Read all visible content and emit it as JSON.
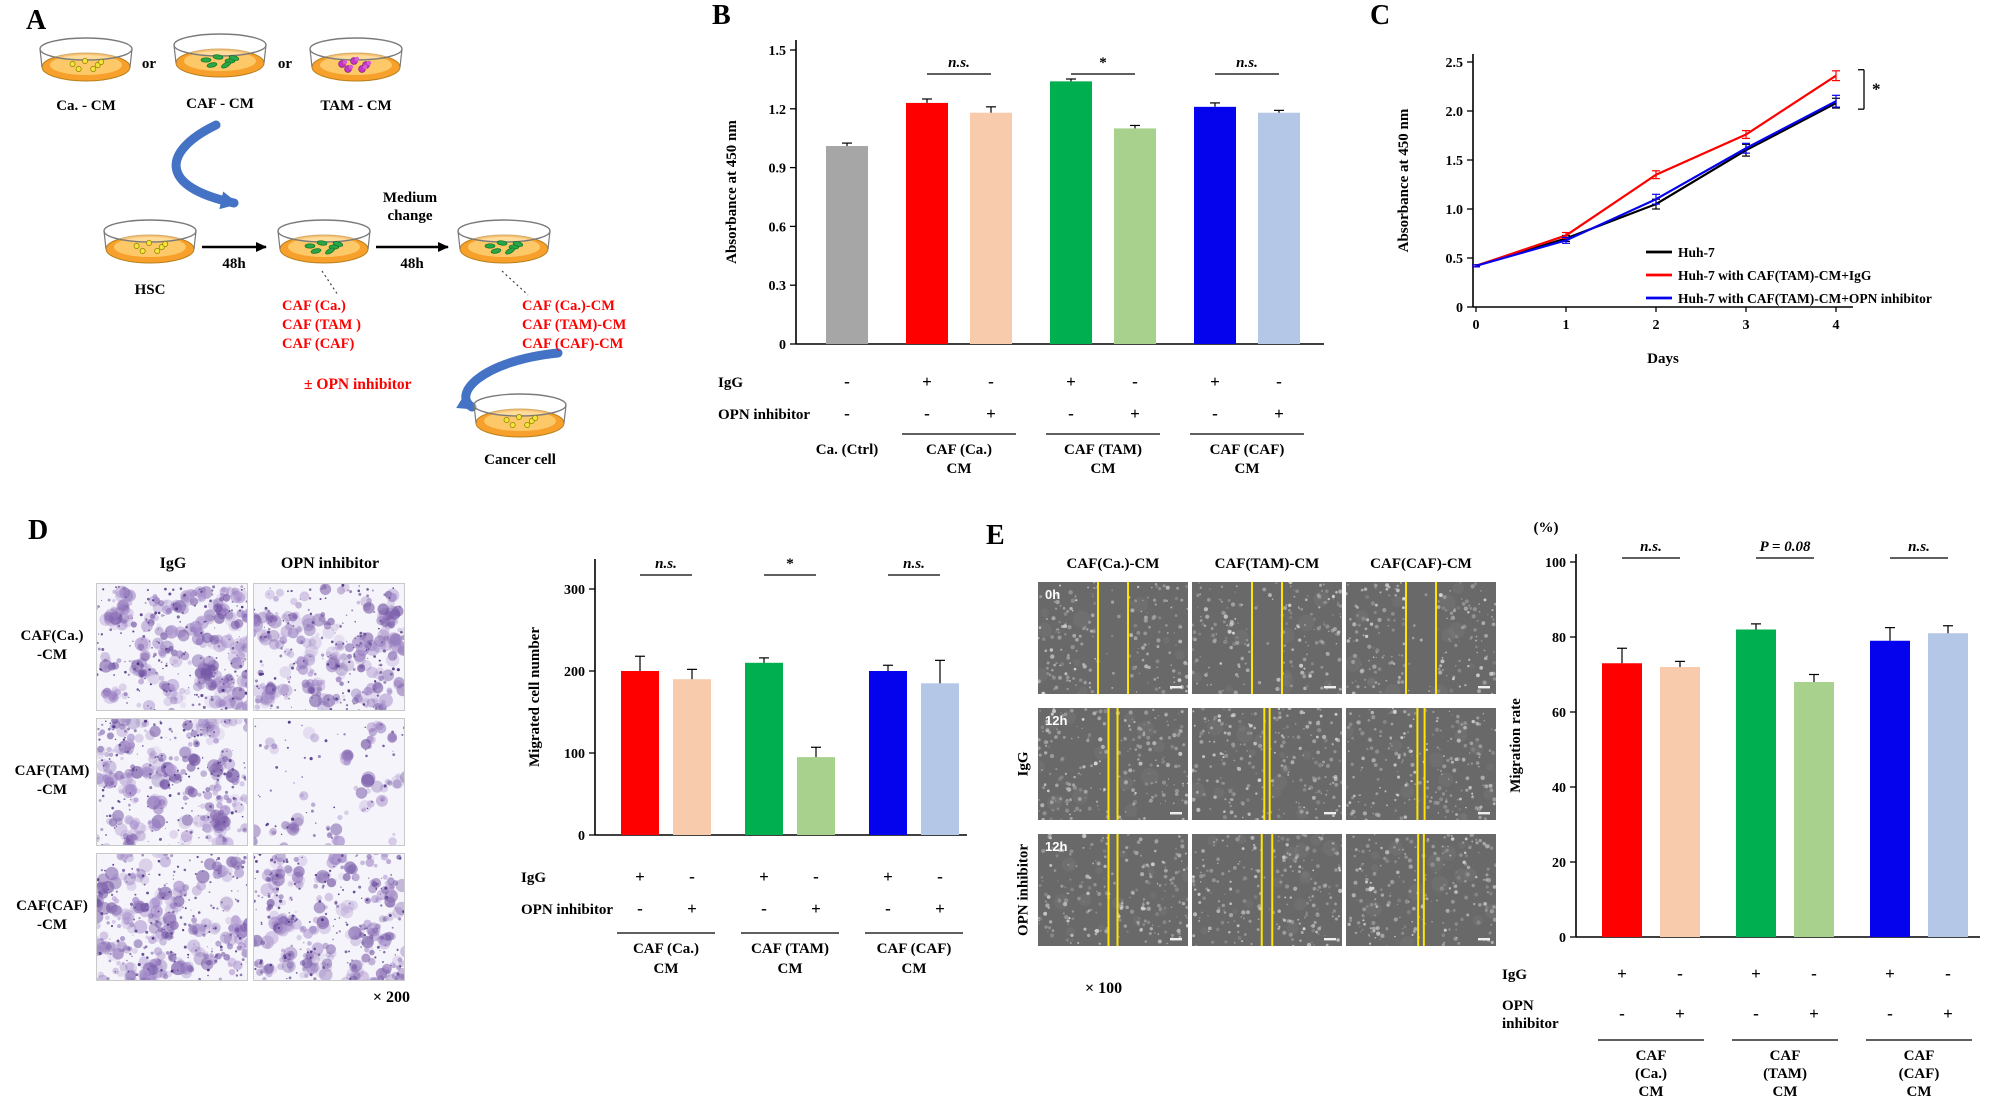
{
  "figure": {
    "background": "#ffffff"
  },
  "colors": {
    "bar_gray": "#a6a6a6",
    "bar_red": "#fe0000",
    "bar_peach": "#f8cbad",
    "bar_green": "#00b050",
    "bar_light_green": "#a9d18e",
    "bar_blue": "#0502ee",
    "bar_light_blue": "#b4c7e7",
    "schematic_arrow_blue": "#4472c4",
    "red_text": "#fe0000",
    "wound_line_yellow": "#ffe400"
  },
  "panelA": {
    "label": "A",
    "dishes_top": [
      {
        "name": "Ca. - CM",
        "cells": "yellow"
      },
      {
        "name": "CAF - CM",
        "cells": "green"
      },
      {
        "name": "TAM - CM",
        "cells": "magenta"
      }
    ],
    "or": "or",
    "hsc": "HSC",
    "arrow1": "48h",
    "medium_change": "Medium\nchange",
    "arrow2": "48h",
    "caf_labels": [
      "CAF (Ca.)",
      "CAF (TAM )",
      "CAF (CAF)"
    ],
    "cm_labels": [
      "CAF (Ca.)-CM",
      "CAF (TAM)-CM",
      "CAF (CAF)-CM"
    ],
    "opn": "± OPN inhibitor",
    "cancer": "Cancer cell"
  },
  "panelB": {
    "label": "B"
  },
  "panelC": {
    "label": "C"
  },
  "panelD": {
    "label": "D",
    "col_headers": [
      "IgG",
      "OPN inhibitor"
    ],
    "row_labels": [
      "CAF(Ca.)\n-CM",
      "CAF(TAM)\n-CM",
      "CAF(CAF)\n-CM"
    ],
    "magnification": "× 200",
    "densities": [
      [
        0.95,
        0.82
      ],
      [
        0.9,
        0.16
      ],
      [
        0.85,
        0.78
      ]
    ]
  },
  "panelE": {
    "label": "E",
    "col_headers": [
      "CAF(Ca.)-CM",
      "CAF(TAM)-CM",
      "CAF(CAF)-CM"
    ],
    "time_tags": [
      "0h",
      "12h",
      "12h"
    ],
    "row_side_labels": [
      "",
      "IgG",
      "OPN inhibitor"
    ],
    "magnification": "× 100",
    "gaps": [
      [
        [
          0.4,
          0.6
        ],
        [
          0.4,
          0.6
        ],
        [
          0.4,
          0.6
        ]
      ],
      [
        [
          0.47,
          0.53
        ],
        [
          0.482,
          0.518
        ],
        [
          0.476,
          0.524
        ]
      ],
      [
        [
          0.47,
          0.53
        ],
        [
          0.465,
          0.535
        ],
        [
          0.481,
          0.519
        ]
      ]
    ]
  },
  "chart_data": [
    {
      "id": "B",
      "type": "bar",
      "ylabel": "Absorbance at 450 nm",
      "ylim": [
        0,
        1.5
      ],
      "yticks": [
        0,
        0.3,
        0.6,
        0.9,
        1.2,
        1.5
      ],
      "values": [
        1.01,
        1.23,
        1.18,
        1.34,
        1.1,
        1.21,
        1.18
      ],
      "errors": [
        0.015,
        0.02,
        0.03,
        0.012,
        0.015,
        0.02,
        0.012
      ],
      "colors": [
        "#a6a6a6",
        "#fe0000",
        "#f8cbad",
        "#00b050",
        "#a9d18e",
        "#0502ee",
        "#b4c7e7"
      ],
      "igg_row": {
        "label": "IgG",
        "values": [
          "-",
          "+",
          "-",
          "+",
          "-",
          "+",
          "-"
        ]
      },
      "opn_row": {
        "label": "OPN inhibitor",
        "values": [
          "-",
          "-",
          "+",
          "-",
          "+",
          "-",
          "+"
        ]
      },
      "group_labels": [
        "Ca. (Ctrl)",
        "CAF (Ca.)\nCM",
        "CAF (TAM)\nCM",
        "CAF (CAF)\nCM"
      ],
      "significance": [
        {
          "pair": [
            1,
            2
          ],
          "text": "n.s."
        },
        {
          "pair": [
            3,
            4
          ],
          "text": "*"
        },
        {
          "pair": [
            5,
            6
          ],
          "text": "n.s."
        }
      ]
    },
    {
      "id": "C",
      "type": "line",
      "ylabel": "Absorbance at 450 nm",
      "xlabel": "Days",
      "ylim": [
        0,
        2.5
      ],
      "yticks": [
        0,
        0.5,
        1.0,
        1.5,
        2.0,
        2.5
      ],
      "x": [
        0,
        1,
        2,
        3,
        4
      ],
      "series": [
        {
          "name": "Huh-7",
          "color": "#000000",
          "values": [
            0.42,
            0.7,
            1.05,
            1.6,
            2.08
          ],
          "errors": [
            0.01,
            0.03,
            0.05,
            0.06,
            0.05
          ]
        },
        {
          "name": "Huh-7 with CAF(TAM)-CM+IgG",
          "color": "#fe0000",
          "values": [
            0.42,
            0.73,
            1.35,
            1.76,
            2.36
          ],
          "errors": [
            0.01,
            0.03,
            0.04,
            0.04,
            0.05
          ]
        },
        {
          "name": "Huh-7 with CAF(TAM)-CM+OPN inhibitor",
          "color": "#0502ee",
          "values": [
            0.42,
            0.68,
            1.1,
            1.62,
            2.1
          ],
          "errors": [
            0.01,
            0.03,
            0.05,
            0.05,
            0.06
          ]
        }
      ],
      "significance": "*",
      "legend_position": "right-inside",
      "grid": false
    },
    {
      "id": "D",
      "type": "bar",
      "ylabel": "Migrated cell number",
      "ylim": [
        0,
        300
      ],
      "yticks": [
        0,
        100,
        200,
        300
      ],
      "values": [
        200,
        190,
        210,
        95,
        200,
        185
      ],
      "errors": [
        18,
        12,
        6,
        12,
        7,
        28
      ],
      "colors": [
        "#fe0000",
        "#f8cbad",
        "#00b050",
        "#a9d18e",
        "#0502ee",
        "#b4c7e7"
      ],
      "igg_row": {
        "label": "IgG",
        "values": [
          "+",
          "-",
          "+",
          "-",
          "+",
          "-"
        ]
      },
      "opn_row": {
        "label": "OPN inhibitor",
        "values": [
          "-",
          "+",
          "-",
          "+",
          "-",
          "+"
        ]
      },
      "group_labels": [
        "CAF (Ca.)\nCM",
        "CAF (TAM)\nCM",
        "CAF (CAF)\nCM"
      ],
      "significance": [
        {
          "pair": [
            0,
            1
          ],
          "text": "n.s."
        },
        {
          "pair": [
            2,
            3
          ],
          "text": "*"
        },
        {
          "pair": [
            4,
            5
          ],
          "text": "n.s."
        }
      ]
    },
    {
      "id": "E",
      "type": "bar",
      "unit_label": "(%)",
      "ylabel": "Migration rate",
      "ylim": [
        0,
        100
      ],
      "yticks": [
        0,
        20,
        40,
        60,
        80,
        100
      ],
      "values": [
        73,
        72,
        82,
        68,
        79,
        81
      ],
      "errors": [
        4,
        1.5,
        1.5,
        2,
        3.5,
        2
      ],
      "colors": [
        "#fe0000",
        "#f8cbad",
        "#00b050",
        "#a9d18e",
        "#0502ee",
        "#b4c7e7"
      ],
      "igg_row": {
        "label": "IgG",
        "values": [
          "+",
          "-",
          "+",
          "-",
          "+",
          "-"
        ]
      },
      "opn_row": {
        "label": "OPN\ninhibitor",
        "values": [
          "-",
          "+",
          "-",
          "+",
          "-",
          "+"
        ]
      },
      "group_labels": [
        "CAF\n(Ca.)\nCM",
        "CAF\n(TAM)\nCM",
        "CAF\n(CAF)\nCM"
      ],
      "significance": [
        {
          "pair": [
            0,
            1
          ],
          "text": "n.s."
        },
        {
          "pair": [
            2,
            3
          ],
          "text": "P = 0.08"
        },
        {
          "pair": [
            4,
            5
          ],
          "text": "n.s."
        }
      ]
    }
  ]
}
